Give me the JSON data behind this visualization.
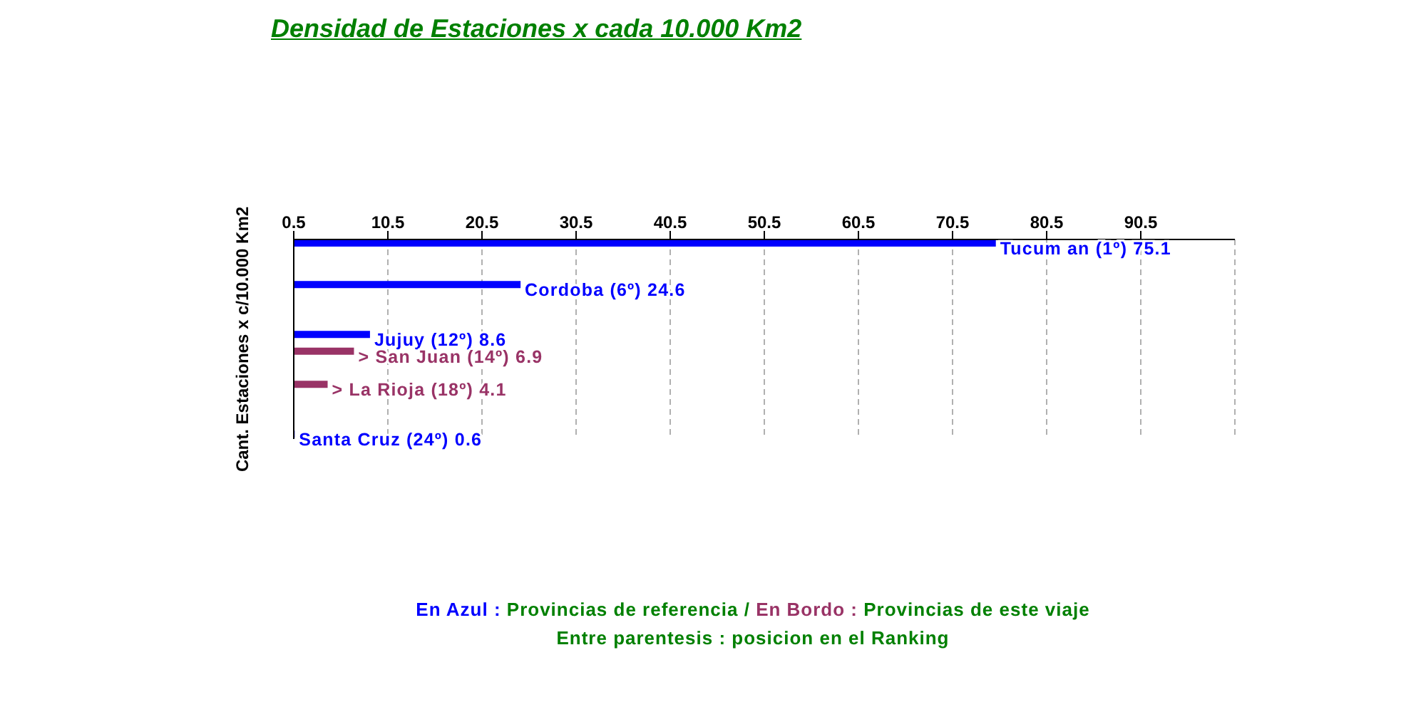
{
  "chart_data": {
    "type": "bar",
    "orientation": "horizontal",
    "title": "Densidad de Estaciones x cada 10.000 Km2",
    "ylabel": "Cant. Estaciones x c/10.000 Km2",
    "categories": [
      null,
      null,
      null,
      null,
      null,
      null,
      null,
      null,
      null,
      null,
      null,
      null,
      null,
      null,
      null,
      null,
      null,
      null,
      null,
      null,
      null,
      null,
      null,
      null
    ],
    "values": [
      75.1,
      null,
      null,
      null,
      null,
      24.6,
      null,
      null,
      null,
      null,
      null,
      8.6,
      null,
      6.9,
      null,
      null,
      null,
      4.1,
      null,
      null,
      null,
      null,
      null,
      0.6
    ],
    "colors": [
      "#0000ff",
      null,
      null,
      null,
      null,
      "#0000ff",
      null,
      null,
      null,
      null,
      null,
      "#0000ff",
      null,
      "#993366",
      null,
      null,
      null,
      "#993366",
      null,
      null,
      null,
      null,
      null,
      "#0000ff"
    ],
    "value_labels": [
      "Tucum an (1º) 75.1",
      null,
      null,
      null,
      null,
      "Cordoba (6º) 24.6",
      null,
      null,
      null,
      null,
      null,
      "Jujuy (12º) 8.6",
      null,
      "> San Juan (14º) 6.9",
      null,
      null,
      null,
      "> La Rioja (18º) 4.1",
      null,
      null,
      null,
      null,
      null,
      "Santa Cruz (24º) 0.6"
    ],
    "xlim": [
      0.5,
      100.5
    ],
    "xticks": [
      0.5,
      10.5,
      20.5,
      30.5,
      40.5,
      50.5,
      60.5,
      70.5,
      80.5,
      90.5
    ],
    "grid": "x",
    "tick_labels": "x",
    "annotations": [
      "En Azul :",
      "Provincias de referencia /",
      "En Bordo :",
      "Provincias de este viaje",
      "Entre parentesis : posicion en el Ranking"
    ]
  }
}
